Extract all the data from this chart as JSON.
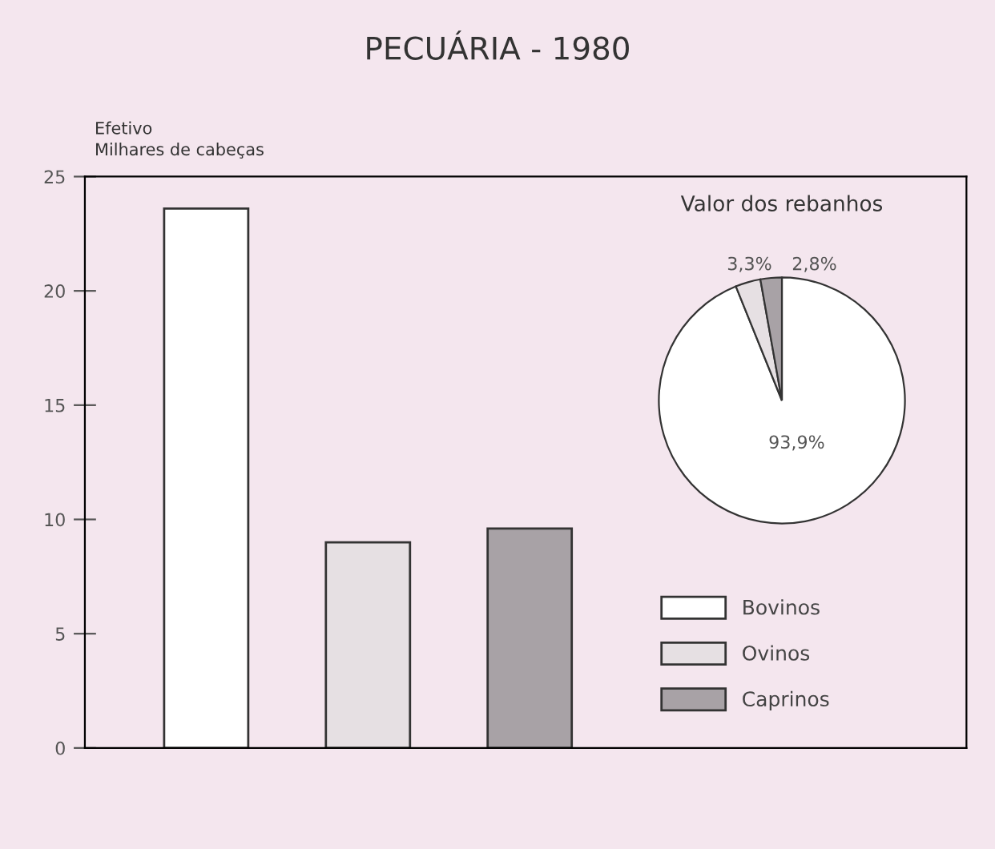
{
  "chart_data": [
    {
      "type": "bar",
      "title": "PECUÁRIA - 1980",
      "ylabel": "Efetivo\nMilhares de cabeças",
      "categories": [
        null,
        null,
        null
      ],
      "values": [
        23.6,
        9.0,
        9.6
      ],
      "colors": [
        "#ffffff",
        "#e6e0e3",
        "#a8a2a6"
      ],
      "ylim": [
        0,
        25
      ],
      "yticks": [
        0,
        5,
        10,
        15,
        20,
        25
      ],
      "tick_labels": "y",
      "grid": false
    },
    {
      "type": "pie",
      "title": "Valor dos rebanhos",
      "categories": [
        "Bovinos",
        "Ovinos",
        "Caprinos"
      ],
      "values": [
        93.9,
        3.3,
        2.8
      ],
      "colors": [
        "#ffffff",
        "#e6e0e3",
        "#a8a2a6"
      ],
      "value_labels": [
        "93,9%",
        "3,3%",
        "2,8%"
      ],
      "legend": "bottom"
    }
  ]
}
